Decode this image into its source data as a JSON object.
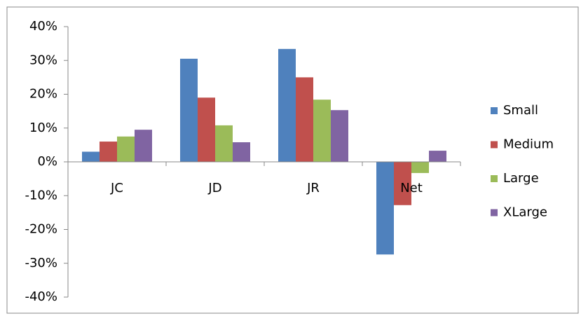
{
  "chart_data": {
    "type": "bar",
    "categories": [
      "JC",
      "JD",
      "JR",
      "Net"
    ],
    "series": [
      {
        "name": "Small",
        "color": "#4f81bd",
        "values": [
          3,
          30.5,
          33.4,
          -27.4
        ]
      },
      {
        "name": "Medium",
        "color": "#c0504d",
        "values": [
          6,
          19,
          25,
          -12.8
        ]
      },
      {
        "name": "Large",
        "color": "#9bbb59",
        "values": [
          7.5,
          10.8,
          18.4,
          -3.3
        ]
      },
      {
        "name": "XLarge",
        "color": "#8064a2",
        "values": [
          9.5,
          5.8,
          15.3,
          3.3
        ]
      }
    ],
    "ylim": [
      -40,
      40
    ],
    "yticks": [
      {
        "value": -40,
        "label": "-40%"
      },
      {
        "value": -30,
        "label": "-30%"
      },
      {
        "value": -20,
        "label": "-20%"
      },
      {
        "value": -10,
        "label": "-10%"
      },
      {
        "value": 0,
        "label": "0%"
      },
      {
        "value": 10,
        "label": "10%"
      },
      {
        "value": 20,
        "label": "20%"
      },
      {
        "value": 30,
        "label": "30%"
      },
      {
        "value": 40,
        "label": "40%"
      }
    ],
    "grid": false,
    "legend": "right"
  }
}
